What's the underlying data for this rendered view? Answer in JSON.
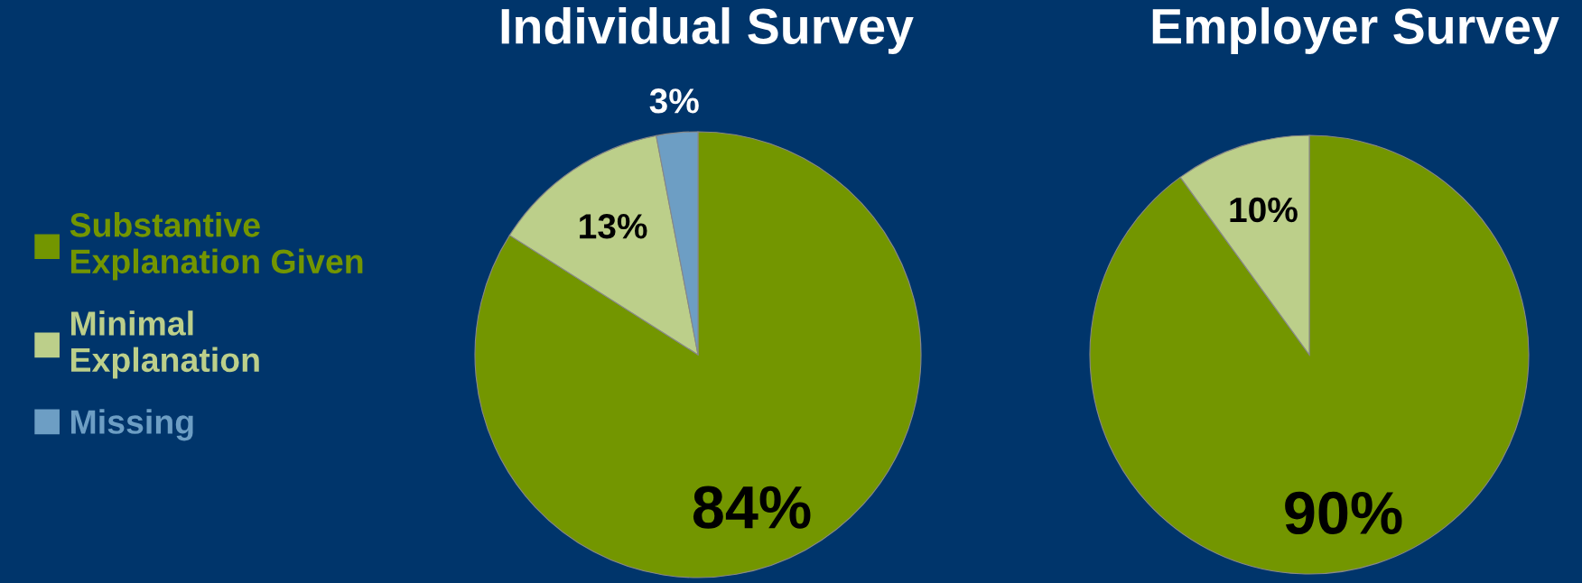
{
  "chart_data": [
    {
      "type": "pie",
      "title": "Individual Survey",
      "categories": [
        "Substantive Explanation Given",
        "Minimal Explanation",
        "Missing"
      ],
      "values": [
        84,
        13,
        3
      ],
      "value_labels": [
        "84%",
        "13%",
        "3%"
      ],
      "colors": [
        "#739600",
        "#bccf8a",
        "#6d9ec4"
      ],
      "legend": "left"
    },
    {
      "type": "pie",
      "title": "Employer Survey",
      "categories": [
        null,
        null
      ],
      "values": [
        90,
        10
      ],
      "value_labels": [
        "90%",
        "10%"
      ],
      "colors": [
        "#739600",
        "#bccf8a"
      ]
    }
  ]
}
